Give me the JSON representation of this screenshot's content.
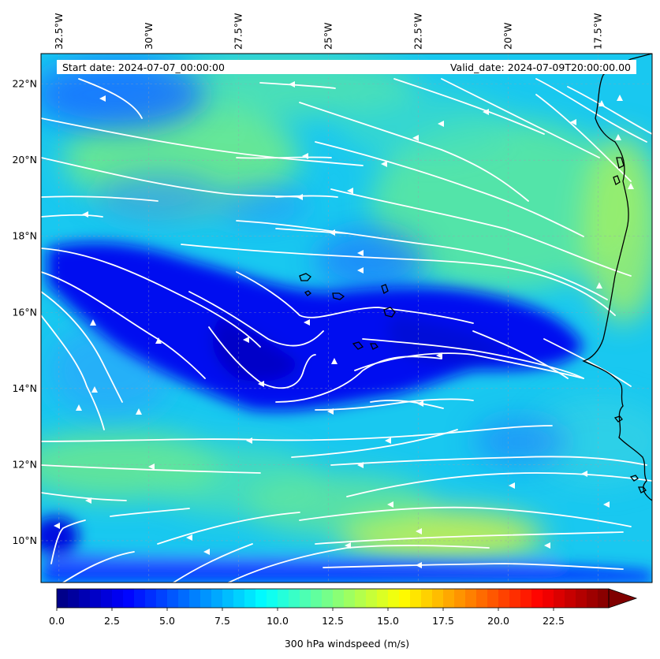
{
  "header": {
    "start_date": "Start date: 2024-07-07_00:00:00",
    "valid_date": "Valid_date: 2024-07-09T20:00:00.00"
  },
  "map": {
    "lon_range": [
      -33.0,
      -16.0
    ],
    "lat_range": [
      8.9,
      22.8
    ],
    "lon_labels": [
      {
        "lon": -32.5,
        "text": "32.5°W"
      },
      {
        "lon": -30.0,
        "text": "30°W"
      },
      {
        "lon": -27.5,
        "text": "27.5°W"
      },
      {
        "lon": -25.0,
        "text": "25°W"
      },
      {
        "lon": -22.5,
        "text": "22.5°W"
      },
      {
        "lon": -20.0,
        "text": "20°W"
      },
      {
        "lon": -17.5,
        "text": "17.5°W"
      }
    ],
    "lat_labels": [
      {
        "lat": 22,
        "text": "22°N"
      },
      {
        "lat": 20,
        "text": "20°N"
      },
      {
        "lat": 18,
        "text": "18°N"
      },
      {
        "lat": 16,
        "text": "16°N"
      },
      {
        "lat": 14,
        "text": "14°N"
      },
      {
        "lat": 12,
        "text": "12°N"
      },
      {
        "lat": 10,
        "text": "10°N"
      }
    ],
    "gridlines": true,
    "coastline_color": "#000000",
    "streamline_color": "#ffffff"
  },
  "colorbar": {
    "label": "300 hPa windspeed (m/s)",
    "min": 0,
    "max": 25,
    "extend": "max",
    "colormap": "jet",
    "tick_labels": [
      "0.0",
      "2.5",
      "5.0",
      "7.5",
      "10.0",
      "12.5",
      "15.0",
      "17.5",
      "20.0",
      "22.5"
    ]
  }
}
